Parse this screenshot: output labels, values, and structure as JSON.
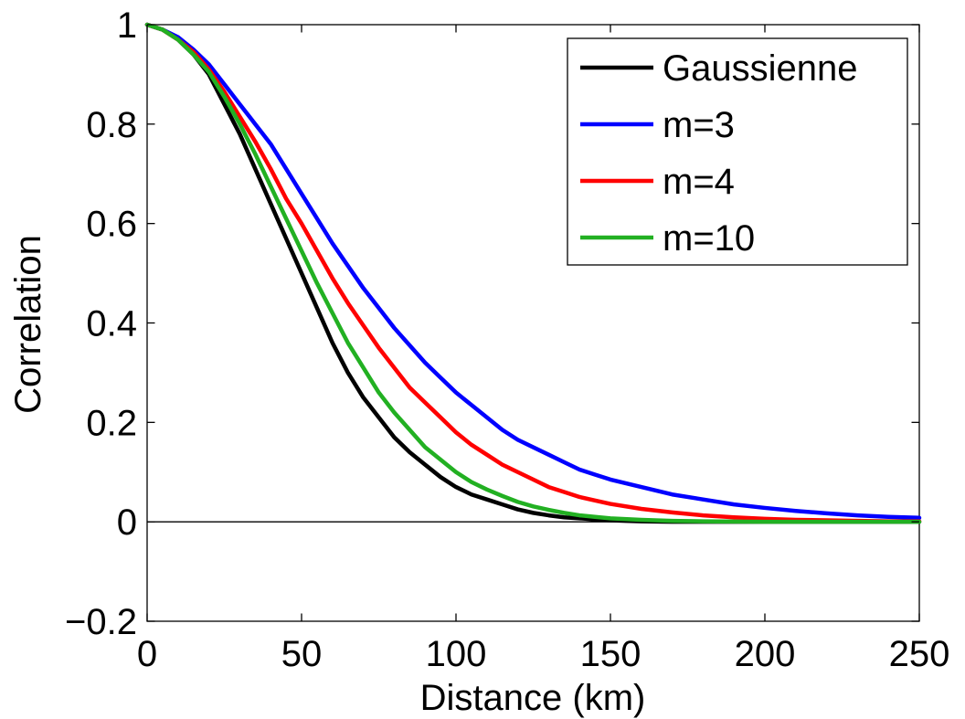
{
  "chart_data": {
    "type": "line",
    "title": "",
    "xlabel": "Distance (km)",
    "ylabel": "Correlation",
    "xlim": [
      0,
      250
    ],
    "ylim": [
      -0.2,
      1
    ],
    "xticks": [
      0,
      50,
      100,
      150,
      200,
      250
    ],
    "xtick_labels": [
      "0",
      "50",
      "100",
      "150",
      "200",
      "250"
    ],
    "yticks": [
      -0.2,
      0,
      0.2,
      0.4,
      0.6,
      0.8,
      1
    ],
    "ytick_labels": [
      "−0.2",
      "0",
      "0.2",
      "0.4",
      "0.6",
      "0.8",
      "1"
    ],
    "grid": false,
    "legend_position": "top-right",
    "reference_line_y": 0,
    "series": [
      {
        "name": "Gaussienne",
        "color": "#000000",
        "x": [
          0,
          5,
          10,
          15,
          20,
          25,
          30,
          35,
          40,
          45,
          50,
          55,
          60,
          65,
          70,
          75,
          80,
          85,
          90,
          95,
          100,
          105,
          110,
          115,
          120,
          125,
          130,
          135,
          140,
          145,
          150,
          155,
          160,
          165,
          170,
          180,
          200,
          250
        ],
        "y": [
          1.0,
          0.99,
          0.97,
          0.94,
          0.9,
          0.84,
          0.78,
          0.71,
          0.64,
          0.57,
          0.5,
          0.43,
          0.36,
          0.3,
          0.25,
          0.21,
          0.17,
          0.14,
          0.115,
          0.09,
          0.07,
          0.055,
          0.045,
          0.035,
          0.025,
          0.018,
          0.013,
          0.009,
          0.007,
          0.005,
          0.003,
          0.002,
          0.001,
          0.0005,
          0.0,
          0.0,
          0.0,
          0.0
        ]
      },
      {
        "name": "m=3",
        "color": "#0000ff",
        "x": [
          0,
          5,
          10,
          15,
          20,
          25,
          30,
          35,
          40,
          45,
          50,
          55,
          60,
          65,
          70,
          75,
          80,
          85,
          90,
          95,
          100,
          105,
          110,
          115,
          120,
          125,
          130,
          135,
          140,
          145,
          150,
          160,
          170,
          180,
          190,
          200,
          210,
          220,
          230,
          240,
          250
        ],
        "y": [
          1.0,
          0.99,
          0.975,
          0.95,
          0.92,
          0.88,
          0.84,
          0.8,
          0.76,
          0.71,
          0.66,
          0.61,
          0.56,
          0.515,
          0.47,
          0.43,
          0.39,
          0.355,
          0.32,
          0.29,
          0.26,
          0.235,
          0.21,
          0.185,
          0.165,
          0.15,
          0.135,
          0.12,
          0.105,
          0.095,
          0.085,
          0.07,
          0.055,
          0.045,
          0.035,
          0.028,
          0.022,
          0.017,
          0.013,
          0.01,
          0.008
        ]
      },
      {
        "name": "m=4",
        "color": "#ff0000",
        "x": [
          0,
          5,
          10,
          15,
          20,
          25,
          30,
          35,
          40,
          45,
          50,
          55,
          60,
          65,
          70,
          75,
          80,
          85,
          90,
          95,
          100,
          105,
          110,
          115,
          120,
          125,
          130,
          135,
          140,
          145,
          150,
          160,
          170,
          180,
          190,
          200,
          210,
          220,
          230,
          240,
          250
        ],
        "y": [
          1.0,
          0.99,
          0.97,
          0.945,
          0.91,
          0.865,
          0.815,
          0.765,
          0.71,
          0.65,
          0.6,
          0.545,
          0.49,
          0.44,
          0.395,
          0.35,
          0.31,
          0.27,
          0.24,
          0.21,
          0.18,
          0.155,
          0.135,
          0.115,
          0.1,
          0.085,
          0.07,
          0.06,
          0.05,
          0.043,
          0.036,
          0.026,
          0.019,
          0.013,
          0.009,
          0.006,
          0.004,
          0.003,
          0.002,
          0.001,
          0.001
        ]
      },
      {
        "name": "m=10",
        "color": "#22b022",
        "x": [
          0,
          5,
          10,
          15,
          20,
          25,
          30,
          35,
          40,
          45,
          50,
          55,
          60,
          65,
          70,
          75,
          80,
          85,
          90,
          95,
          100,
          105,
          110,
          115,
          120,
          125,
          130,
          135,
          140,
          145,
          150,
          160,
          170,
          180,
          200,
          250
        ],
        "y": [
          1.0,
          0.99,
          0.97,
          0.94,
          0.905,
          0.855,
          0.8,
          0.74,
          0.675,
          0.61,
          0.545,
          0.48,
          0.42,
          0.36,
          0.31,
          0.26,
          0.22,
          0.185,
          0.15,
          0.125,
          0.1,
          0.08,
          0.065,
          0.052,
          0.04,
          0.031,
          0.024,
          0.018,
          0.013,
          0.01,
          0.007,
          0.004,
          0.002,
          0.001,
          0.0,
          0.0
        ]
      }
    ]
  }
}
